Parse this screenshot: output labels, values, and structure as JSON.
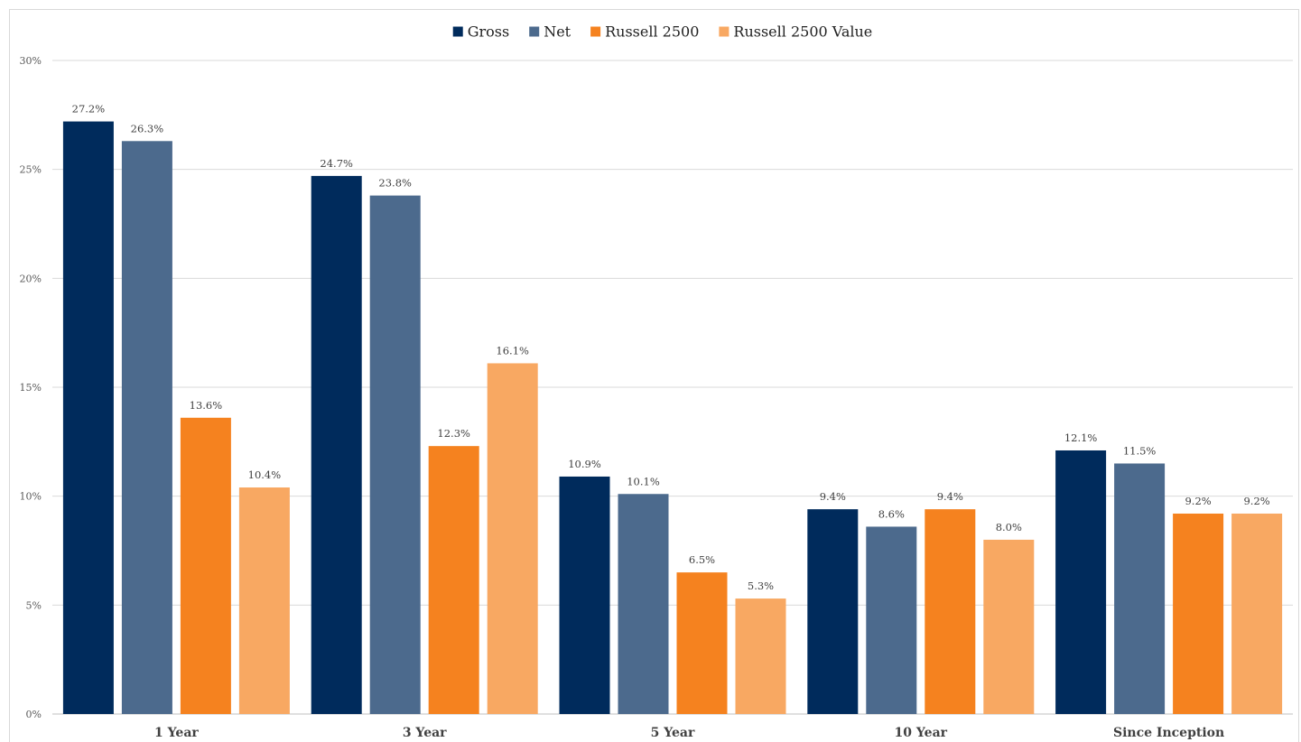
{
  "chart_data": {
    "type": "bar",
    "title": "",
    "xlabel": "",
    "ylabel": "",
    "ylim": [
      0,
      30
    ],
    "yticks": [
      0,
      5,
      10,
      15,
      20,
      25,
      30
    ],
    "ytick_labels": [
      "0%",
      "5%",
      "10%",
      "15%",
      "20%",
      "25%",
      "30%"
    ],
    "grid": true,
    "legend_position": "top-center",
    "categories": [
      "1 Year",
      "3 Year",
      "5 Year",
      "10 Year",
      "Since Inception"
    ],
    "series": [
      {
        "name": "Gross",
        "color": "#002B5C",
        "values": [
          27.2,
          24.7,
          10.9,
          9.4,
          12.1
        ],
        "labels": [
          "27.2%",
          "24.7%",
          "10.9%",
          "9.4%",
          "12.1%"
        ]
      },
      {
        "name": "Net",
        "color": "#4C6A8D",
        "values": [
          26.3,
          23.8,
          10.1,
          8.6,
          11.5
        ],
        "labels": [
          "26.3%",
          "23.8%",
          "10.1%",
          "8.6%",
          "11.5%"
        ]
      },
      {
        "name": "Russell 2500",
        "color": "#F5821F",
        "values": [
          13.6,
          12.3,
          6.5,
          9.4,
          9.2
        ],
        "labels": [
          "13.6%",
          "12.3%",
          "6.5%",
          "9.4%",
          "9.2%"
        ]
      },
      {
        "name": "Russell 2500 Value",
        "color": "#F8A862",
        "values": [
          10.4,
          16.1,
          5.3,
          8.0,
          9.2
        ],
        "labels": [
          "10.4%",
          "16.1%",
          "5.3%",
          "8.0%",
          "9.2%"
        ]
      }
    ]
  }
}
